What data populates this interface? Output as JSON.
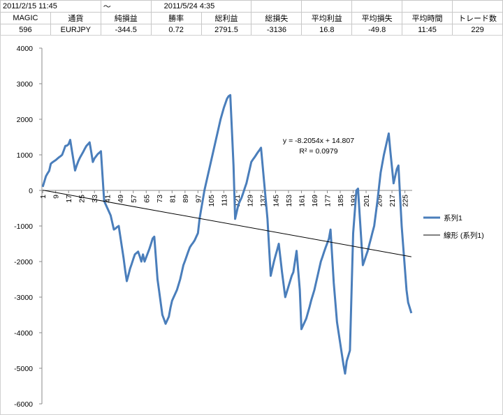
{
  "table": {
    "period": [
      "2011/2/15 11:45",
      "～",
      "2011/5/24 4:35"
    ],
    "header": [
      "MAGIC",
      "通貨",
      "純損益",
      "勝率",
      "総利益",
      "総損失",
      "平均利益",
      "平均損失",
      "平均時間",
      "トレード数"
    ],
    "row": [
      "596",
      "EURJPY",
      "-344.5",
      "0.72",
      "2791.5",
      "-3136",
      "16.8",
      "-49.8",
      "11:45",
      "229"
    ]
  },
  "chart_data": {
    "type": "line",
    "categories": [
      1,
      null,
      null,
      null,
      null,
      null,
      null,
      null,
      9,
      null,
      null,
      null,
      null,
      null,
      null,
      null,
      17,
      null,
      null,
      null,
      null,
      null,
      null,
      null,
      25,
      null,
      null,
      null,
      null,
      null,
      null,
      null,
      33,
      null,
      null,
      null,
      null,
      null,
      null,
      null,
      41,
      null,
      null,
      null,
      null,
      null,
      null,
      null,
      49,
      null,
      null,
      null,
      null,
      null,
      null,
      null,
      57,
      null,
      null,
      null,
      null,
      null,
      null,
      null,
      65,
      null,
      null,
      null,
      null,
      null,
      null,
      null,
      73,
      null,
      null,
      null,
      null,
      null,
      null,
      null,
      81,
      null,
      null,
      null,
      null,
      null,
      null,
      null,
      89,
      null,
      null,
      null,
      null,
      null,
      null,
      null,
      97,
      null,
      null,
      null,
      null,
      null,
      null,
      null,
      105,
      null,
      null,
      null,
      null,
      null,
      null,
      null,
      113,
      null,
      null,
      null,
      null,
      null,
      null,
      null,
      121,
      null,
      null,
      null,
      null,
      null,
      null,
      null,
      129,
      null,
      null,
      null,
      null,
      null,
      null,
      null,
      137,
      null,
      null,
      null,
      null,
      null,
      null,
      null,
      145,
      null,
      null,
      null,
      null,
      null,
      null,
      null,
      153,
      null,
      null,
      null,
      null,
      null,
      null,
      null,
      161,
      null,
      null,
      null,
      null,
      null,
      null,
      null,
      169,
      null,
      null,
      null,
      null,
      null,
      null,
      null,
      177,
      null,
      null,
      null,
      null,
      null,
      null,
      null,
      185,
      null,
      null,
      null,
      null,
      null,
      null,
      null,
      193,
      null,
      null,
      null,
      null,
      null,
      null,
      null,
      201,
      null,
      null,
      null,
      null,
      null,
      null,
      null,
      209,
      null,
      null,
      null,
      null,
      null,
      null,
      null,
      217,
      null,
      null,
      null,
      null,
      null,
      null,
      null,
      225,
      null,
      null,
      null,
      null
    ],
    "series": [
      {
        "name": "系列1",
        "color": "#4a7ebb",
        "values": [
          100,
          250,
          400,
          480,
          550,
          750,
          790,
          820,
          850,
          890,
          930,
          960,
          1000,
          1120,
          1250,
          1260,
          1300,
          1420,
          1130,
          850,
          560,
          700,
          820,
          920,
          1000,
          1080,
          1170,
          1250,
          1300,
          1350,
          1080,
          800,
          900,
          960,
          1020,
          1060,
          1100,
          400,
          -300,
          -400,
          -500,
          -600,
          -700,
          -900,
          -1100,
          -1070,
          -1030,
          -1000,
          -1300,
          -1600,
          -1900,
          -2250,
          -2550,
          -2380,
          -2200,
          -2070,
          -1930,
          -1800,
          -1760,
          -1720,
          -1850,
          -2000,
          -1800,
          -2000,
          -1880,
          -1760,
          -1640,
          -1500,
          -1350,
          -1300,
          -1900,
          -2500,
          -2830,
          -3170,
          -3500,
          -3620,
          -3750,
          -3650,
          -3550,
          -3300,
          -3100,
          -3000,
          -2900,
          -2800,
          -2650,
          -2500,
          -2300,
          -2100,
          -1980,
          -1850,
          -1720,
          -1600,
          -1530,
          -1470,
          -1400,
          -1300,
          -1200,
          -800,
          -530,
          -270,
          0,
          200,
          400,
          600,
          800,
          1000,
          1200,
          1400,
          1600,
          1800,
          2000,
          2160,
          2320,
          2450,
          2580,
          2650,
          2680,
          1700,
          700,
          -800,
          -600,
          -400,
          -300,
          -200,
          -70,
          70,
          200,
          400,
          600,
          800,
          870,
          930,
          1000,
          1070,
          1130,
          1200,
          700,
          200,
          -300,
          -800,
          -1600,
          -2400,
          -2200,
          -2000,
          -1830,
          -1670,
          -1500,
          -1900,
          -2300,
          -2650,
          -3000,
          -2850,
          -2700,
          -2550,
          -2400,
          -2300,
          -2000,
          -1700,
          -2250,
          -2800,
          -3900,
          -3800,
          -3700,
          -3600,
          -3440,
          -3280,
          -3100,
          -2950,
          -2800,
          -2600,
          -2400,
          -2200,
          -2000,
          -1870,
          -1730,
          -1600,
          -1480,
          -1360,
          -1100,
          -1850,
          -2600,
          -3150,
          -3700,
          -4000,
          -4300,
          -4600,
          -4900,
          -5150,
          -4800,
          -4650,
          -4500,
          -2850,
          -1200,
          -600,
          0,
          50,
          -670,
          -1380,
          -2100,
          -1970,
          -1830,
          -1700,
          -1520,
          -1350,
          -1170,
          -1000,
          -650,
          -300,
          100,
          500,
          750,
          1000,
          1200,
          1400,
          1600,
          1100,
          650,
          200,
          400,
          600,
          700,
          -150,
          -1000,
          -1600,
          -2200,
          -2800,
          -3150,
          -3300,
          -3450
        ]
      }
    ],
    "trendline": {
      "name": "線形 (系列1)",
      "color": "#000000",
      "slope": -8.2054,
      "intercept": 14.807,
      "equation": "y = -8.2054x + 14.807",
      "r_squared": "R² = 0.0979"
    },
    "ylim": [
      -6000,
      4000
    ],
    "yticks": [
      -6000,
      -5000,
      -4000,
      -3000,
      -2000,
      -1000,
      0,
      1000,
      2000,
      3000,
      4000
    ],
    "grid": false,
    "legend": "right"
  }
}
